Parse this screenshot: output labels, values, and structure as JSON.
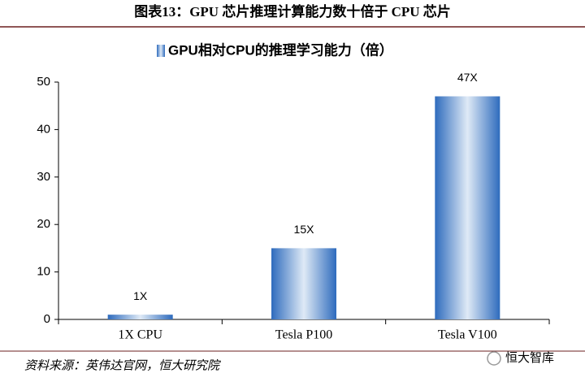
{
  "chart_data": {
    "type": "bar",
    "title": "图表13：GPU 芯片推理计算能力数十倍于 CPU 芯片",
    "categories": [
      "1X CPU",
      "Tesla P100",
      "Tesla V100"
    ],
    "series": [
      {
        "name": "GPU相对CPU的推理学习能力（倍）",
        "color": "#2e6bbd",
        "values": [
          1,
          15,
          47
        ],
        "value_labels": [
          "1X",
          "15X",
          "47X"
        ]
      }
    ],
    "ylim": [
      0,
      50
    ],
    "yticks": [
      0,
      10,
      20,
      30,
      40,
      50
    ],
    "grid": false,
    "legend": "top",
    "source": "资料来源：英伟达官网，恒大研究院",
    "watermark": "恒大智库"
  }
}
